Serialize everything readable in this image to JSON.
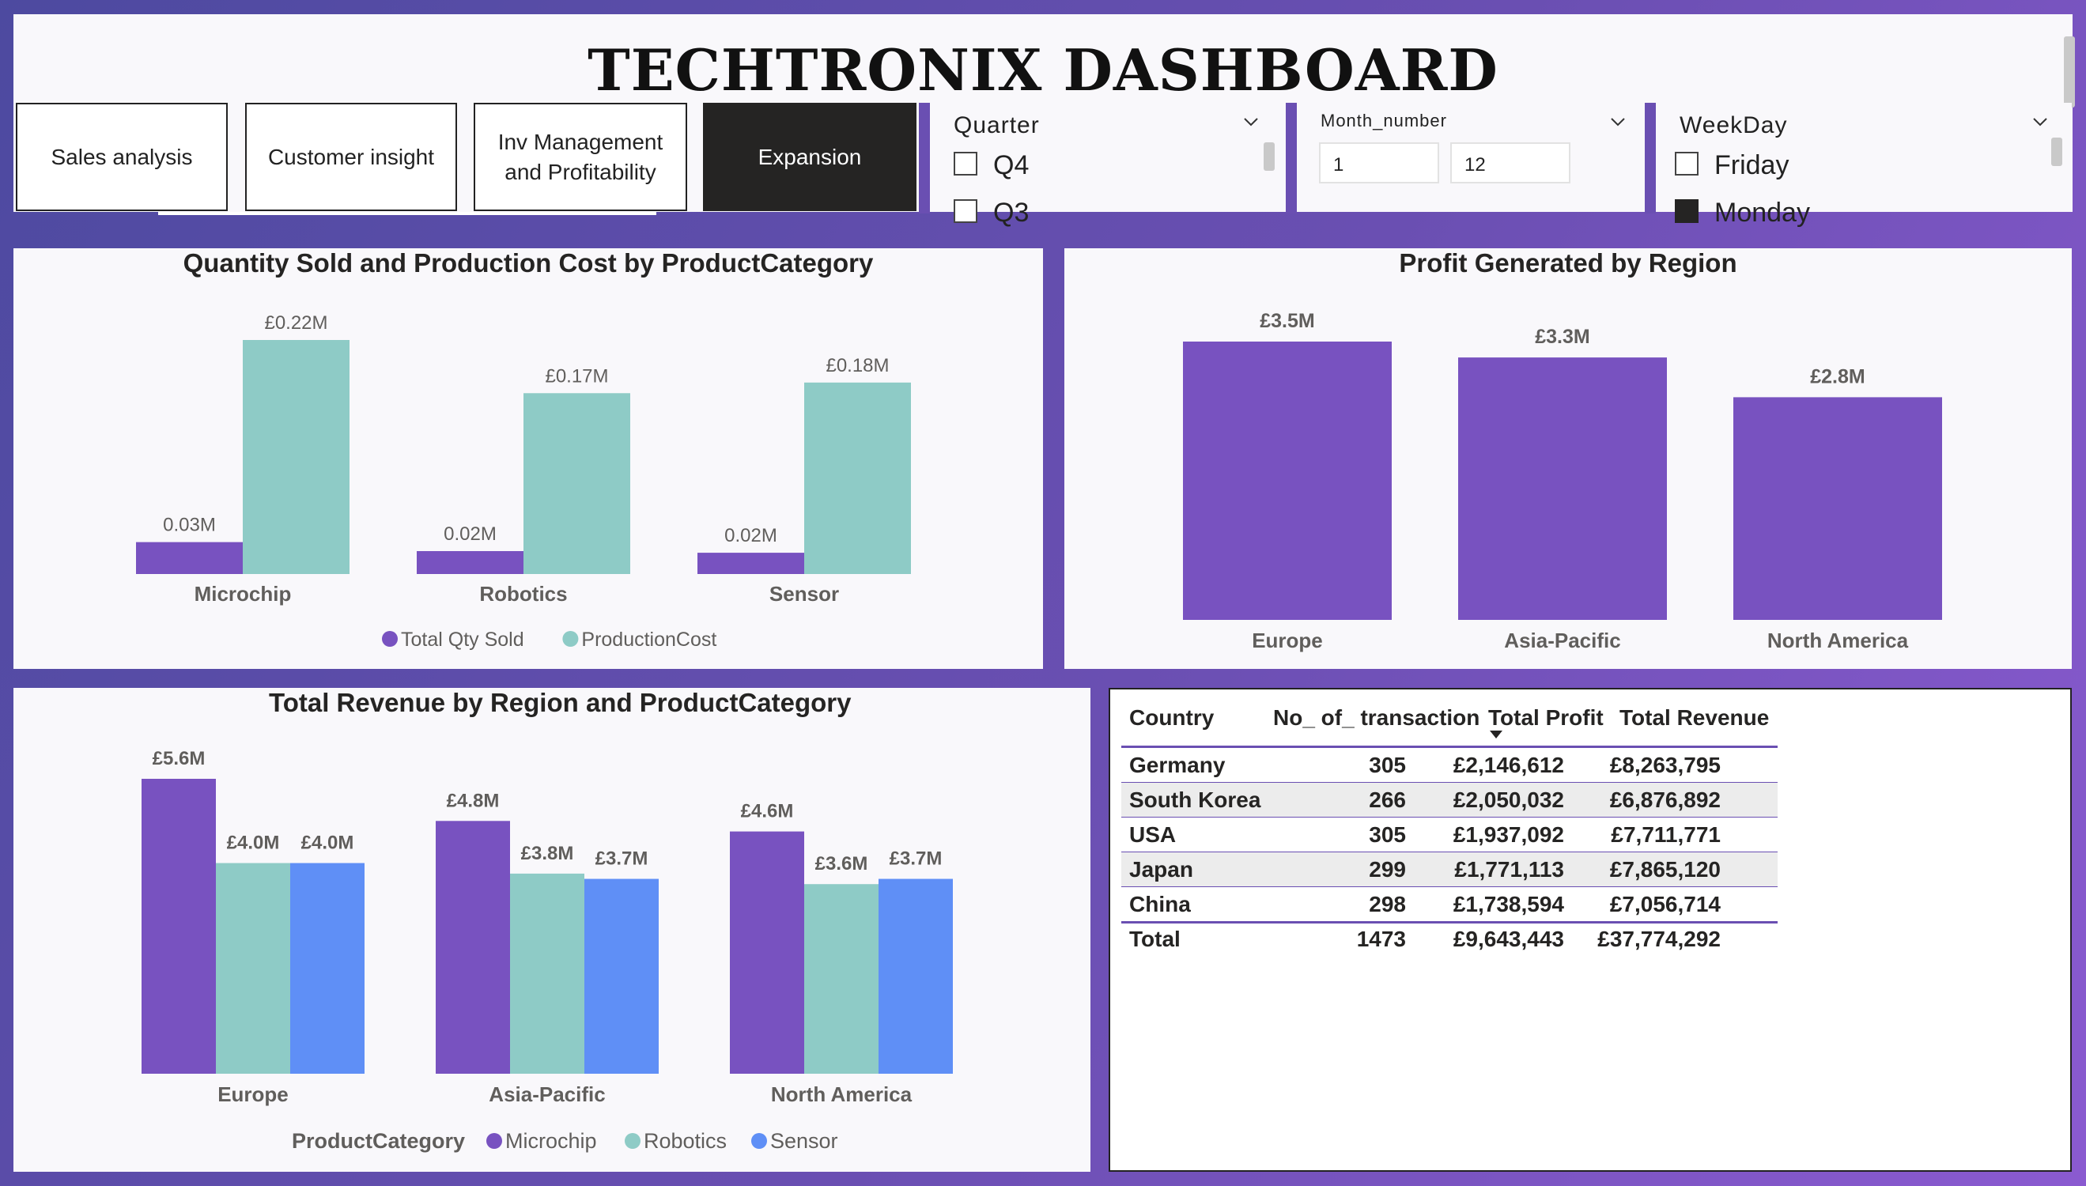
{
  "title": "TECHTRONIX DASHBOARD",
  "nav": [
    {
      "label": "Sales analysis",
      "active": false
    },
    {
      "label": "Customer insight",
      "active": false
    },
    {
      "label": "Inv Management and Profitability",
      "active": false
    },
    {
      "label": "Expansion",
      "active": true
    }
  ],
  "slicers": {
    "quarter": {
      "title": "Quarter",
      "visible_item": "Q4",
      "partial_item": "Q3"
    },
    "month": {
      "title": "Month_number",
      "min": "1",
      "max": "12"
    },
    "weekday": {
      "title": "WeekDay",
      "visible_item": "Friday",
      "partial_item": "Monday"
    }
  },
  "chart_qty": {
    "title": "Quantity Sold and Production Cost by ProductCategory",
    "chart_data": {
      "type": "bar",
      "categories": [
        "Microchip",
        "Robotics",
        "Sensor"
      ],
      "series": [
        {
          "name": "Total Qty Sold",
          "values": [
            0.03,
            0.02,
            0.02
          ],
          "labels": [
            "0.03M",
            "0.02M",
            "0.02M"
          ],
          "color": "#7852c0"
        },
        {
          "name": "ProductionCost",
          "values": [
            0.22,
            0.17,
            0.18
          ],
          "labels": [
            "£0.22M",
            "£0.17M",
            "£0.18M"
          ],
          "color": "#8ecbc6"
        }
      ],
      "unit": "M",
      "ylim": [
        0,
        0.22
      ]
    }
  },
  "chart_profit": {
    "title": "Profit Generated by Region",
    "chart_data": {
      "type": "bar",
      "categories": [
        "Europe",
        "Asia-Pacific",
        "North America"
      ],
      "values": [
        3.5,
        3.3,
        2.8
      ],
      "labels": [
        "£3.5M",
        "£3.3M",
        "£2.8M"
      ],
      "color": "#7852c0",
      "ylim": [
        0,
        3.5
      ]
    }
  },
  "chart_revenue": {
    "title": "Total Revenue by Region and ProductCategory",
    "legend_title": "ProductCategory",
    "chart_data": {
      "type": "bar",
      "categories": [
        "Europe",
        "Asia-Pacific",
        "North America"
      ],
      "series": [
        {
          "name": "Microchip",
          "values": [
            5.6,
            4.8,
            4.6
          ],
          "labels": [
            "£5.6M",
            "£4.8M",
            "£4.6M"
          ],
          "color": "#7852c0"
        },
        {
          "name": "Robotics",
          "values": [
            4.0,
            3.8,
            3.6
          ],
          "labels": [
            "£4.0M",
            "£3.8M",
            "£3.6M"
          ],
          "color": "#8ecbc6"
        },
        {
          "name": "Sensor",
          "values": [
            4.0,
            3.7,
            3.7
          ],
          "labels": [
            "£4.0M",
            "£3.7M",
            "£3.7M"
          ],
          "color": "#5f8ff6"
        }
      ],
      "ylim": [
        0,
        5.6
      ]
    }
  },
  "table": {
    "columns": [
      "Country",
      "No_ of_ transaction",
      "Total Profit",
      "Total Revenue"
    ],
    "rows": [
      [
        "Germany",
        "305",
        "£2,146,612",
        "£8,263,795"
      ],
      [
        "South Korea",
        "266",
        "£2,050,032",
        "£6,876,892"
      ],
      [
        "USA",
        "305",
        "£1,937,092",
        "£7,711,771"
      ],
      [
        "Japan",
        "299",
        "£1,771,113",
        "£7,865,120"
      ],
      [
        "China",
        "298",
        "£1,738,594",
        "£7,056,714"
      ]
    ],
    "total": [
      "Total",
      "1473",
      "£9,643,443",
      "£37,774,292"
    ]
  }
}
